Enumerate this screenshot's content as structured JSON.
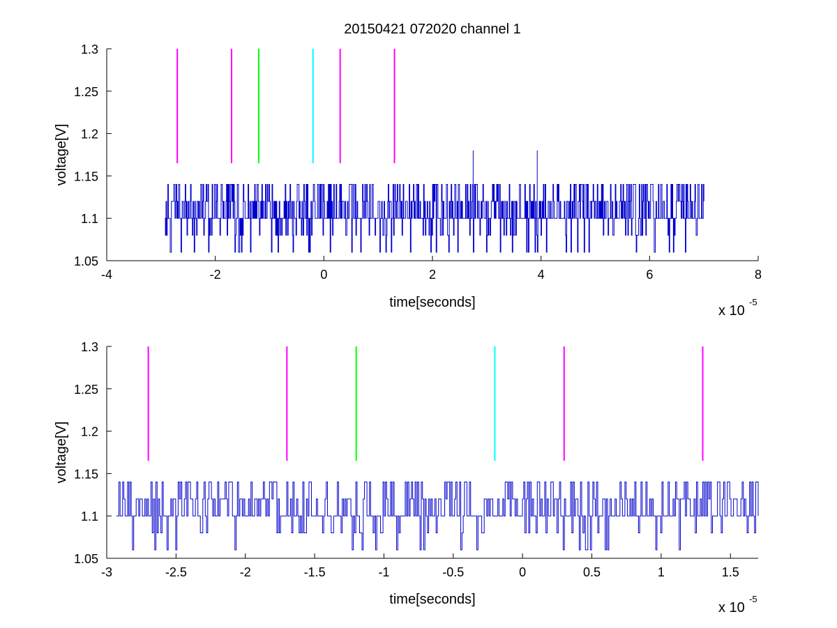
{
  "colors": {
    "signal": "#0000cc",
    "marker_magenta": "#ff00ff",
    "marker_green": "#00ff00",
    "marker_cyan": "#00ffff",
    "axes": "#000000",
    "background": "#ffffff"
  },
  "chart_data": [
    {
      "type": "line",
      "title": "20150421 072020 channel 1",
      "xlabel": "time[seconds]",
      "ylabel": "voltage[V]",
      "x_exponent_base": "x 10",
      "x_exponent_power": "-5",
      "xlim": [
        -4,
        8
      ],
      "ylim": [
        1.05,
        1.3
      ],
      "grid": false,
      "x_ticks": [
        -4,
        -2,
        0,
        2,
        4,
        6,
        8
      ],
      "x_tick_labels": [
        "-4",
        "-2",
        "0",
        "2",
        "4",
        "6",
        "8"
      ],
      "y_ticks": [
        1.05,
        1.1,
        1.15,
        1.2,
        1.25,
        1.3
      ],
      "y_tick_labels": [
        "1.05",
        "1.1",
        "1.15",
        "1.2",
        "1.25",
        "1.3"
      ],
      "series": [
        {
          "style": "noisy step signal",
          "x_range": [
            -2.93,
            7.0
          ],
          "baseline": 1.1,
          "levels": [
            1.06,
            1.08,
            1.1,
            1.12,
            1.14
          ],
          "spikes": [
            {
              "x": 2.75,
              "y": 1.18
            },
            {
              "x": 3.93,
              "y": 1.18
            }
          ]
        }
      ],
      "markers": [
        {
          "x": -2.7,
          "color": "magenta",
          "y_range": [
            1.165,
            1.3
          ]
        },
        {
          "x": -1.7,
          "color": "magenta",
          "y_range": [
            1.165,
            1.3
          ]
        },
        {
          "x": -1.2,
          "color": "green",
          "y_range": [
            1.165,
            1.3
          ]
        },
        {
          "x": -0.2,
          "color": "cyan",
          "y_range": [
            1.165,
            1.3
          ]
        },
        {
          "x": 0.3,
          "color": "magenta",
          "y_range": [
            1.165,
            1.3
          ]
        },
        {
          "x": 1.3,
          "color": "magenta",
          "y_range": [
            1.165,
            1.3
          ]
        }
      ]
    },
    {
      "type": "line",
      "title": "",
      "xlabel": "time[seconds]",
      "ylabel": "voltage[V]",
      "x_exponent_base": "x 10",
      "x_exponent_power": "-5",
      "xlim": [
        -3.0,
        1.7
      ],
      "ylim": [
        1.05,
        1.3
      ],
      "grid": false,
      "x_ticks": [
        -3,
        -2.5,
        -2,
        -1.5,
        -1,
        -0.5,
        0,
        0.5,
        1,
        1.5
      ],
      "x_tick_labels": [
        "-3",
        "-2.5",
        "-2",
        "-1.5",
        "-1",
        "-0.5",
        "0",
        "0.5",
        "1",
        "1.5"
      ],
      "y_ticks": [
        1.05,
        1.1,
        1.15,
        1.2,
        1.25,
        1.3
      ],
      "y_tick_labels": [
        "1.05",
        "1.1",
        "1.15",
        "1.2",
        "1.25",
        "1.3"
      ],
      "series": [
        {
          "style": "noisy step signal",
          "x_range": [
            -2.93,
            1.7
          ],
          "baseline": 1.1,
          "levels": [
            1.06,
            1.08,
            1.1,
            1.12,
            1.14
          ],
          "spikes": []
        }
      ],
      "markers": [
        {
          "x": -2.7,
          "color": "magenta",
          "y_range": [
            1.165,
            1.3
          ]
        },
        {
          "x": -1.7,
          "color": "magenta",
          "y_range": [
            1.165,
            1.3
          ]
        },
        {
          "x": -1.2,
          "color": "green",
          "y_range": [
            1.165,
            1.3
          ]
        },
        {
          "x": -0.2,
          "color": "cyan",
          "y_range": [
            1.165,
            1.3
          ]
        },
        {
          "x": 0.3,
          "color": "magenta",
          "y_range": [
            1.165,
            1.3
          ]
        },
        {
          "x": 1.3,
          "color": "magenta",
          "y_range": [
            1.165,
            1.3
          ]
        }
      ]
    }
  ]
}
